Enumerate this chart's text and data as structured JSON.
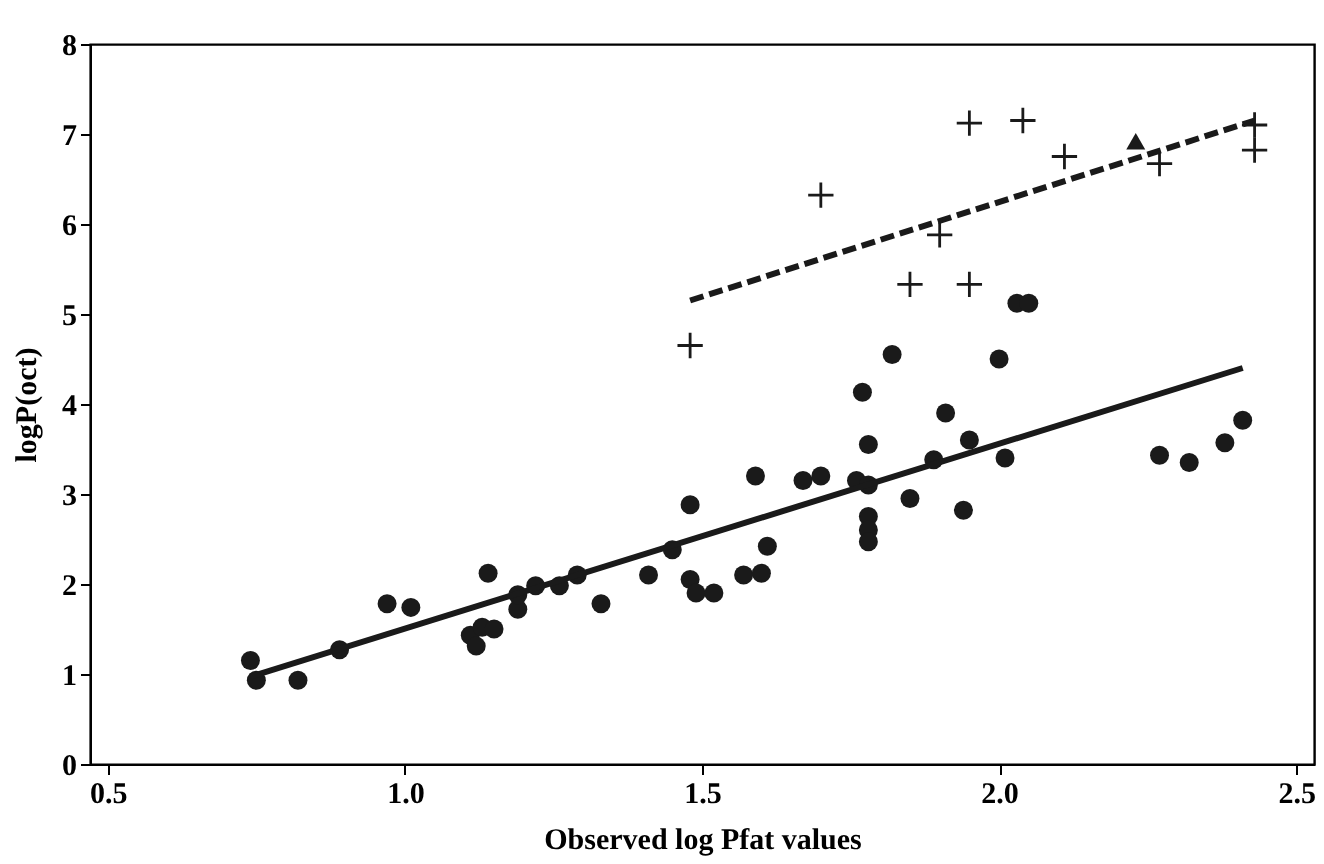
{
  "chart_data": {
    "type": "scatter",
    "xlabel": "Observed log Pfat values",
    "ylabel": "logP(oct)",
    "xlim": [
      0.47,
      2.53
    ],
    "ylim": [
      0,
      8
    ],
    "xticks": [
      {
        "value": 0.5,
        "label": "0.5"
      },
      {
        "value": 1.0,
        "label": "1.0"
      },
      {
        "value": 1.5,
        "label": "1.5"
      },
      {
        "value": 2.0,
        "label": "2.0"
      },
      {
        "value": 2.5,
        "label": "2.5"
      }
    ],
    "yticks": [
      0,
      1,
      2,
      3,
      4,
      5,
      6,
      7,
      8
    ],
    "grid": false,
    "series": [
      {
        "marker": "circle",
        "color": "#1a1a1a",
        "x": [
          0.74,
          0.75,
          0.82,
          0.89,
          0.97,
          1.01,
          1.11,
          1.12,
          1.13,
          1.14,
          1.15,
          1.19,
          1.19,
          1.22,
          1.26,
          1.29,
          1.33,
          1.41,
          1.45,
          1.48,
          1.48,
          1.49,
          1.52,
          1.57,
          1.59,
          1.6,
          1.61,
          1.67,
          1.7,
          1.76,
          1.77,
          1.78,
          1.78,
          1.78,
          1.78,
          1.78,
          1.82,
          1.85,
          1.89,
          1.91,
          1.94,
          1.95,
          2.0,
          2.01,
          2.03,
          2.05,
          2.27,
          2.32,
          2.38,
          2.41
        ],
        "values": [
          1.15,
          0.93,
          0.93,
          1.27,
          1.78,
          1.74,
          1.43,
          1.31,
          1.52,
          2.12,
          1.5,
          1.72,
          1.88,
          1.98,
          1.98,
          2.1,
          1.78,
          2.1,
          2.38,
          2.88,
          2.05,
          1.9,
          1.9,
          2.1,
          3.2,
          2.12,
          2.42,
          3.15,
          3.2,
          3.15,
          4.13,
          3.55,
          3.1,
          2.75,
          2.6,
          2.47,
          4.55,
          2.95,
          3.38,
          3.9,
          2.82,
          3.6,
          4.5,
          3.4,
          5.12,
          5.12,
          3.43,
          3.35,
          3.57,
          3.82
        ]
      },
      {
        "marker": "cross",
        "color": "#1a1a1a",
        "x": [
          1.48,
          1.7,
          1.85,
          1.9,
          1.95,
          1.95,
          2.04,
          2.11,
          2.27,
          2.43,
          2.43
        ],
        "values": [
          4.65,
          6.32,
          5.33,
          5.88,
          5.33,
          7.12,
          7.15,
          6.75,
          6.67,
          7.1,
          6.82
        ]
      },
      {
        "marker": "triangle",
        "color": "#1a1a1a",
        "x": [
          2.23
        ],
        "values": [
          6.92
        ]
      },
      {
        "type": "line",
        "line_style": "solid",
        "color": "#1a1a1a",
        "x": [
          0.74,
          2.41
        ],
        "values": [
          0.97,
          4.4
        ]
      },
      {
        "type": "line",
        "line_style": "dashed",
        "color": "#1a1a1a",
        "x": [
          1.48,
          2.43
        ],
        "values": [
          5.15,
          7.15
        ]
      }
    ]
  }
}
